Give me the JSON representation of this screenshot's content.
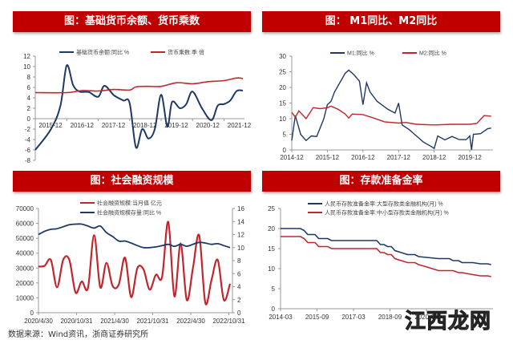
{
  "panels": {
    "p1": {
      "title": "图：基础货币余额、货币乘数"
    },
    "p2": {
      "title": "图： M1同比、M2同比"
    },
    "p3": {
      "title": "图：社会融资规模"
    },
    "p4": {
      "title": "图：存款准备金率"
    }
  },
  "source": "数据来源：Wind资讯，浙商证券研究所",
  "watermark": {
    "part1": "江西",
    "part2": "龙网"
  },
  "colors": {
    "banner": "#c00000",
    "navy": "#1f3864",
    "red": "#c0262d"
  },
  "chart_data": [
    {
      "type": "line",
      "title": "图：基础货币余额、货币乘数",
      "x_ticks": [
        "2015-12",
        "2016-12",
        "2017-12",
        "2018-12",
        "2019-12",
        "2020-12",
        "2021-12"
      ],
      "ylim": [
        -8,
        12
      ],
      "y_ticks": [
        "12",
        "10",
        "8",
        "6",
        "4",
        "2",
        "0",
        "-2",
        "-4",
        "-6",
        "-8"
      ],
      "series": [
        {
          "name": "基础货币余额:同比 %",
          "color": "#1f3864",
          "x": [
            0,
            0.5,
            0.8,
            1.0,
            1.2,
            1.4,
            1.7,
            2.0,
            2.2,
            2.5,
            2.8,
            3.0,
            3.2,
            3.4,
            3.6,
            3.8,
            4.0,
            4.2,
            4.35,
            4.6,
            4.8,
            5.0,
            5.3,
            5.6,
            5.8,
            6.0,
            6.2,
            6.4,
            6.6
          ],
          "values": [
            -6,
            -2,
            2.5,
            10.2,
            6.5,
            5.2,
            5.1,
            4.2,
            6.3,
            4.5,
            3.5,
            3.0,
            -5.5,
            -2.0,
            -3.8,
            -2.0,
            4.6,
            -1.5,
            3.2,
            2.0,
            2.8,
            5.2,
            2.0,
            -0.3,
            2.5,
            2.8,
            3.5,
            5.3,
            5.4
          ]
        },
        {
          "name": "货币乘数:季 倍",
          "color": "#c0262d",
          "x": [
            0,
            1.0,
            1.5,
            2.0,
            2.5,
            3.0,
            3.2,
            3.6,
            4.0,
            4.5,
            5.0,
            5.5,
            6.0,
            6.4,
            6.6
          ],
          "values": [
            5.0,
            5.0,
            5.4,
            5.3,
            5.6,
            5.5,
            6.1,
            6.2,
            6.2,
            6.9,
            6.7,
            7.1,
            7.3,
            7.8,
            7.7
          ]
        }
      ]
    },
    {
      "type": "line",
      "title": "图： M1同比、M2同比",
      "x_ticks": [
        "2014-12",
        "2015-12",
        "2016-12",
        "2017-12",
        "2018-12",
        "2019-12"
      ],
      "ylim": [
        0,
        30
      ],
      "y_ticks": [
        "30",
        "25",
        "20",
        "15",
        "10",
        "5",
        "0"
      ],
      "series": [
        {
          "name": "M1:同比 %",
          "color": "#1f3864",
          "x": [
            0,
            0.1,
            0.25,
            0.4,
            0.55,
            0.7,
            0.9,
            1.0,
            1.1,
            1.2,
            1.5,
            1.6,
            1.75,
            1.9,
            2.0,
            2.1,
            2.2,
            2.4,
            2.7,
            2.9,
            3.0,
            3.1,
            3.3,
            3.5,
            3.7,
            3.9,
            4.0,
            4.1,
            4.3,
            4.5,
            4.7,
            4.9,
            5.0,
            5.05,
            5.1,
            5.3,
            5.5,
            5.6
          ],
          "values": [
            3,
            11,
            5,
            3,
            4.5,
            4.3,
            10,
            14.5,
            15.5,
            18.5,
            24.5,
            25.5,
            24,
            22,
            14.5,
            21.5,
            18.5,
            15.5,
            13,
            11.8,
            15,
            8,
            6.5,
            4.5,
            2.5,
            1.2,
            0.5,
            4.5,
            3.2,
            4.3,
            3.3,
            3.3,
            4.5,
            0,
            5,
            5.2,
            6.8,
            7
          ]
        },
        {
          "name": "M2:同比 %",
          "color": "#c0262d",
          "x": [
            0,
            0.1,
            0.2,
            0.4,
            0.6,
            0.8,
            1.0,
            1.1,
            1.3,
            1.5,
            1.6,
            1.7,
            2.0,
            2.3,
            2.6,
            3.0,
            3.2,
            3.5,
            4.0,
            4.5,
            5.0,
            5.2,
            5.4,
            5.6
          ],
          "values": [
            12,
            10.5,
            12.5,
            10,
            13.5,
            13.2,
            13.5,
            14,
            13,
            11.5,
            10.2,
            11.5,
            11.3,
            10.2,
            9,
            8.6,
            8.8,
            8.2,
            8.0,
            8.2,
            8.2,
            8.5,
            11,
            10.8
          ]
        }
      ]
    },
    {
      "type": "line",
      "title": "图：社会融资规模",
      "x_ticks": [
        "2020/4/30",
        "2020/10/31",
        "2021/4/30",
        "2021/10/31",
        "2022/4/30",
        "2022/10/31"
      ],
      "ylim_left": [
        0,
        70000
      ],
      "y_ticks_left": [
        "70000",
        "60000",
        "50000",
        "40000",
        "30000",
        "20000",
        "10000",
        "0"
      ],
      "ylim_right": [
        0,
        16
      ],
      "y_ticks_right": [
        "16",
        "14",
        "12",
        "10",
        "8",
        "6",
        "4",
        "2",
        "0"
      ],
      "series": [
        {
          "name": "社会融资规模:当月值 亿元",
          "color": "#c0262d",
          "axis": "left",
          "values": [
            31000,
            31500,
            35500,
            17000,
            35500,
            35500,
            13500,
            21000,
            16500,
            52000,
            17000,
            33500,
            18000,
            19000,
            37000,
            10500,
            30000,
            29000,
            15500,
            25500,
            24000,
            61000,
            11000,
            46500,
            8500,
            30000,
            52000,
            6500,
            22000,
            35500,
            8500,
            19500
          ]
        },
        {
          "name": "社会融资规模存量:同比 %",
          "color": "#1f3864",
          "axis": "right",
          "values": [
            12.0,
            12.5,
            12.8,
            12.9,
            13.2,
            13.5,
            13.6,
            13.6,
            13.3,
            13.0,
            13.3,
            12.3,
            11.7,
            11.0,
            11.0,
            10.7,
            10.3,
            10.0,
            10.0,
            10.1,
            10.3,
            10.5,
            10.2,
            10.5,
            10.2,
            10.5,
            10.8,
            10.7,
            10.5,
            10.6,
            10.3,
            10.0
          ]
        }
      ]
    },
    {
      "type": "line",
      "title": "图：存款准备金率",
      "x_ticks": [
        "2014-03",
        "2015-09",
        "2017-03",
        "2018-09",
        "2020-03"
      ],
      "ylim": [
        0,
        25
      ],
      "y_ticks": [
        "25",
        "20",
        "15",
        "10",
        "5",
        "0"
      ],
      "series": [
        {
          "name": "人民币存款准备金率:大型存款类金融机构(月) %",
          "color": "#1f3864",
          "x": [
            0,
            0.55,
            0.65,
            0.75,
            0.95,
            1.05,
            1.3,
            1.4,
            2.65,
            2.75,
            2.85,
            2.95,
            3.05,
            3.15,
            3.5,
            3.7,
            3.8,
            4.35,
            4.45,
            4.65,
            4.75,
            4.9,
            5.0,
            5.3,
            5.5,
            5.7,
            5.8
          ],
          "values": [
            20,
            20,
            19.5,
            18.5,
            18.5,
            17.5,
            17.5,
            17,
            17,
            16,
            16,
            15.5,
            15.5,
            14.5,
            13.5,
            13.5,
            13,
            12.5,
            12.5,
            12.5,
            12,
            12,
            11.5,
            11.5,
            11.2,
            11.2,
            11
          ]
        },
        {
          "name": "人民币存款准备金率:中小型存款类金融机构(月) %",
          "color": "#c0262d",
          "x": [
            0,
            0.55,
            0.65,
            0.75,
            0.95,
            1.05,
            1.3,
            1.4,
            2.65,
            2.75,
            2.85,
            2.95,
            3.05,
            3.15,
            3.5,
            3.7,
            3.8,
            4.0,
            4.35,
            4.45,
            4.75,
            4.9,
            5.0,
            5.3,
            5.5,
            5.7,
            5.8
          ],
          "values": [
            18,
            18,
            17.5,
            16.5,
            16.5,
            15.5,
            15.5,
            15,
            15,
            14,
            14,
            13.5,
            13.5,
            12.5,
            11.5,
            11.5,
            11,
            10.5,
            9.5,
            9.5,
            9.5,
            9,
            9,
            8.5,
            8.2,
            8.2,
            8
          ]
        }
      ]
    }
  ]
}
